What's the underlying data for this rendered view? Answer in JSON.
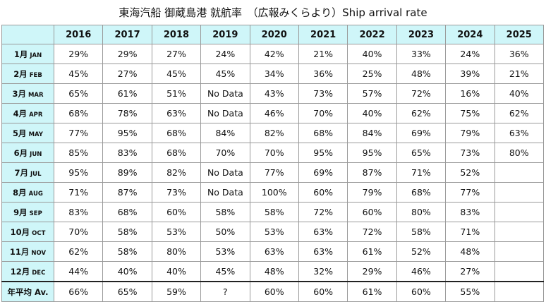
{
  "title": "東海汽船 御蔵島港 就航率　（広報みくらより）Ship arrival rate",
  "years": [
    "2016",
    "2017",
    "2018",
    "2019",
    "2020",
    "2021",
    "2022",
    "2023",
    "2024",
    "2025"
  ],
  "rows": [
    {
      "jp": "1月",
      "en": "JAN",
      "values": [
        "29%",
        "29%",
        "27%",
        "24%",
        "42%",
        "21%",
        "40%",
        "33%",
        "24%",
        "36%"
      ]
    },
    {
      "jp": "2月",
      "en": "FEB",
      "values": [
        "45%",
        "27%",
        "45%",
        "45%",
        "34%",
        "36%",
        "25%",
        "48%",
        "39%",
        "21%"
      ]
    },
    {
      "jp": "3月",
      "en": "MAR",
      "values": [
        "65%",
        "61%",
        "51%",
        "No Data",
        "43%",
        "73%",
        "57%",
        "72%",
        "16%",
        "40%"
      ]
    },
    {
      "jp": "4月",
      "en": "APR",
      "values": [
        "68%",
        "78%",
        "63%",
        "No Data",
        "46%",
        "70%",
        "40%",
        "62%",
        "75%",
        "62%"
      ]
    },
    {
      "jp": "5月",
      "en": "MAY",
      "values": [
        "77%",
        "95%",
        "68%",
        "84%",
        "82%",
        "68%",
        "84%",
        "69%",
        "79%",
        "63%"
      ]
    },
    {
      "jp": "6月",
      "en": "JUN",
      "values": [
        "85%",
        "83%",
        "68%",
        "70%",
        "70%",
        "95%",
        "95%",
        "65%",
        "73%",
        "80%"
      ]
    },
    {
      "jp": "7月",
      "en": "JUL",
      "values": [
        "95%",
        "89%",
        "82%",
        "No Data",
        "77%",
        "69%",
        "87%",
        "71%",
        "52%",
        ""
      ]
    },
    {
      "jp": "8月",
      "en": "AUG",
      "values": [
        "71%",
        "87%",
        "73%",
        "No Data",
        "100%",
        "60%",
        "79%",
        "68%",
        "77%",
        ""
      ]
    },
    {
      "jp": "9月",
      "en": "SEP",
      "values": [
        "83%",
        "68%",
        "60%",
        "58%",
        "58%",
        "72%",
        "60%",
        "80%",
        "83%",
        ""
      ]
    },
    {
      "jp": "10月",
      "en": "OCT",
      "values": [
        "70%",
        "58%",
        "53%",
        "50%",
        "53%",
        "63%",
        "72%",
        "58%",
        "71%",
        ""
      ]
    },
    {
      "jp": "11月",
      "en": "NOV",
      "values": [
        "62%",
        "58%",
        "80%",
        "53%",
        "63%",
        "63%",
        "61%",
        "52%",
        "48%",
        ""
      ]
    },
    {
      "jp": "12月",
      "en": "DEC",
      "values": [
        "44%",
        "40%",
        "40%",
        "45%",
        "48%",
        "32%",
        "29%",
        "46%",
        "27%",
        ""
      ]
    }
  ],
  "average": {
    "label": "年平均 Av.",
    "values": [
      "66%",
      "65%",
      "59%",
      "?",
      "60%",
      "60%",
      "61%",
      "60%",
      "55%",
      ""
    ]
  }
}
